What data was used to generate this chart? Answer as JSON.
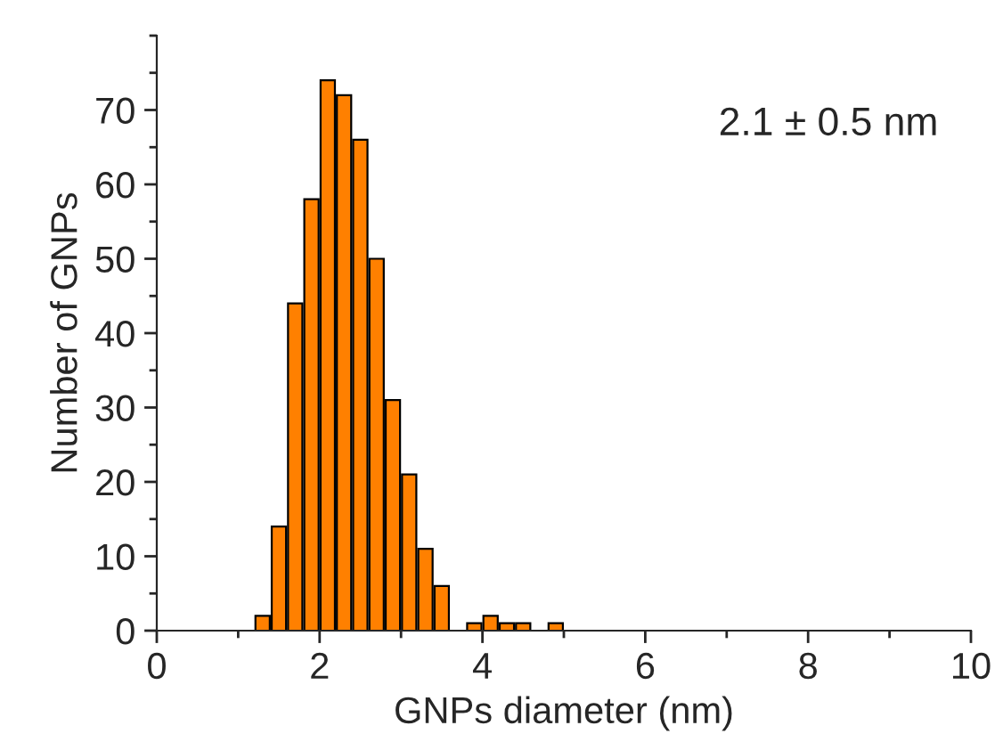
{
  "chart_data": {
    "type": "histogram",
    "xlabel": "GNPs diameter (nm)",
    "ylabel": "Number of GNPs",
    "bins": [
      1.2,
      1.4,
      1.6,
      1.8,
      2.0,
      2.2,
      2.4,
      2.6,
      2.8,
      3.0,
      3.2,
      3.4,
      3.6,
      3.8,
      4.0,
      4.2,
      4.4,
      4.6,
      4.8,
      5.0
    ],
    "values": [
      2,
      14,
      44,
      58,
      74,
      72,
      66,
      50,
      31,
      21,
      11,
      6,
      0,
      1,
      2,
      1,
      1,
      0,
      1
    ],
    "color": "#ff8000",
    "xlim": [
      0,
      10
    ],
    "xticks": [
      0,
      2,
      4,
      6,
      8,
      10
    ],
    "ylim": [
      0,
      80
    ],
    "yticks": [
      0,
      10,
      20,
      30,
      40,
      50,
      60,
      70
    ],
    "annotations": [
      "2.1 ± 0.5 nm"
    ],
    "grid": false
  }
}
